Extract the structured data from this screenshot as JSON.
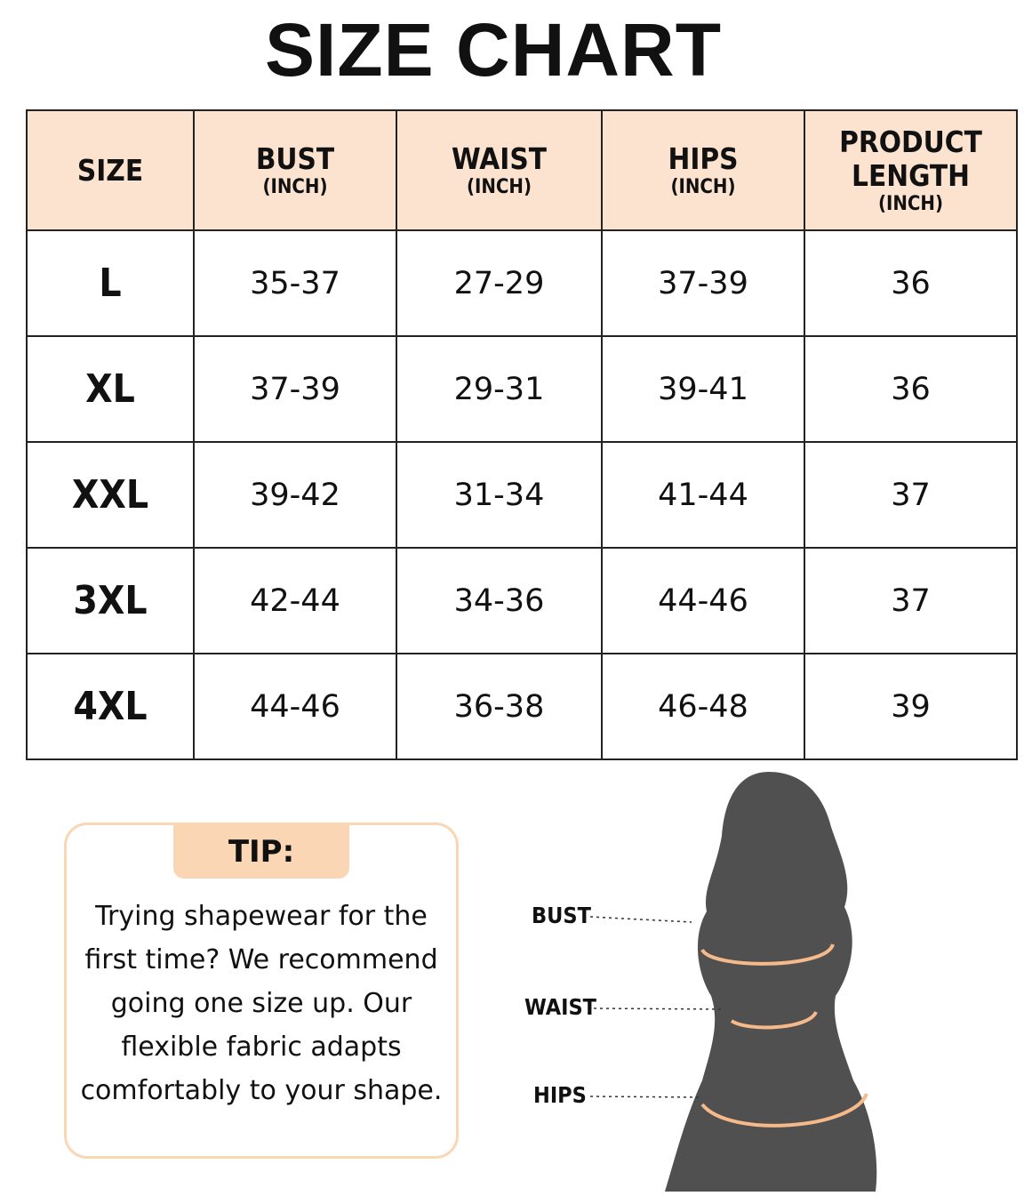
{
  "header": {
    "title": "SIZE CHART"
  },
  "table": {
    "headers": [
      {
        "label": "SIZE"
      },
      {
        "label": "BUST",
        "unit": "(INCH)"
      },
      {
        "label": "WAIST",
        "unit": "(INCH)"
      },
      {
        "label": "HIPS",
        "unit": "(INCH)"
      },
      {
        "label": "PRODUCT LENGTH",
        "unit": "(INCH)"
      }
    ],
    "rows": [
      [
        "L",
        "35-37",
        "27-29",
        "37-39",
        "36"
      ],
      [
        "XL",
        "37-39",
        "29-31",
        "39-41",
        "36"
      ],
      [
        "XXL",
        "39-42",
        "31-34",
        "41-44",
        "37"
      ],
      [
        "3XL",
        "42-44",
        "34-36",
        "44-46",
        "37"
      ],
      [
        "4XL",
        "44-46",
        "36-38",
        "46-48",
        "39"
      ]
    ]
  },
  "tip": {
    "title": "TIP:",
    "lines": [
      "Trying shapewear for the",
      "first time? We recommend",
      "going one size up. Our",
      "flexible fabric adapts",
      "comfortably to your shape."
    ]
  },
  "figure": {
    "labels": [
      "BUST",
      "WAIST",
      "HIPS"
    ]
  }
}
